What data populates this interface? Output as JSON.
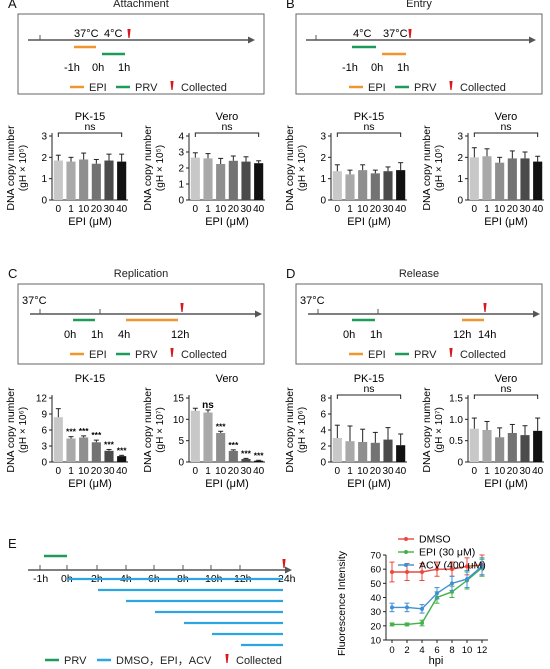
{
  "colors": {
    "epi": "#f0962e",
    "prv": "#1e9a5a",
    "collected": "#d7191c",
    "treat": "#2ea4e0",
    "dmso": "#e8493e",
    "epi30": "#43b14a",
    "acv": "#3f8fd6"
  },
  "panels": {
    "A": {
      "letter": "A",
      "title": "Attachment",
      "labels": [
        "37°C",
        "4°C",
        "-1h",
        "0h",
        "1h"
      ],
      "legend": [
        "EPI",
        "PRV",
        "Collected"
      ]
    },
    "B": {
      "letter": "B",
      "title": "Entry",
      "labels": [
        "4°C",
        "37°C",
        "-1h",
        "0h",
        "1h"
      ],
      "legend": [
        "EPI",
        "PRV",
        "Collected"
      ]
    },
    "C": {
      "letter": "C",
      "title": "Replication",
      "labels": [
        "37°C",
        "0h",
        "1h",
        "4h",
        "12h"
      ],
      "legend": [
        "EPI",
        "PRV",
        "Collected"
      ]
    },
    "D": {
      "letter": "D",
      "title": "Release",
      "labels": [
        "37°C",
        "0h",
        "1h",
        "12h",
        "14h"
      ],
      "legend": [
        "EPI",
        "PRV",
        "Collected"
      ]
    },
    "E": {
      "letter": "E",
      "labels": [
        "-1h",
        "0h",
        "2h",
        "4h",
        "6h",
        "8h",
        "10h",
        "12h",
        "24h"
      ],
      "legend": [
        "PRV",
        "DMSO，EPI，ACV",
        "Collected"
      ]
    }
  },
  "chart_data": [
    {
      "type": "bar",
      "panel": "A",
      "title": "PK-15",
      "xlabel": "EPI (μM)",
      "ylabel": "DNA copy number (gH × 10⁵)",
      "categories": [
        "0",
        "1",
        "10",
        "20",
        "30",
        "40"
      ],
      "values": [
        1.85,
        1.8,
        1.9,
        1.7,
        1.85,
        1.8
      ],
      "errors": [
        0.25,
        0.2,
        0.3,
        0.2,
        0.3,
        0.35
      ],
      "ylim": [
        0,
        3
      ],
      "yticks": [
        "0",
        "1",
        "2",
        "3"
      ],
      "sig": [
        "",
        "",
        "",
        "",
        "",
        ""
      ],
      "bracket": "ns"
    },
    {
      "type": "bar",
      "panel": "A",
      "title": "Vero",
      "xlabel": "EPI (μM)",
      "ylabel": "DNA copy number (gH × 10⁵)",
      "categories": [
        "0",
        "1",
        "10",
        "20",
        "30",
        "40"
      ],
      "values": [
        2.65,
        2.6,
        2.25,
        2.45,
        2.4,
        2.3
      ],
      "errors": [
        0.3,
        0.3,
        0.35,
        0.3,
        0.3,
        0.15
      ],
      "ylim": [
        0,
        4
      ],
      "yticks": [
        "0",
        "1",
        "2",
        "3",
        "4"
      ],
      "sig": [
        "",
        "",
        "",
        "",
        "",
        ""
      ],
      "bracket": "ns"
    },
    {
      "type": "bar",
      "panel": "B",
      "title": "PK-15",
      "xlabel": "EPI (μM)",
      "ylabel": "DNA copy number (gH × 10⁵)",
      "categories": [
        "0",
        "1",
        "10",
        "20",
        "30",
        "40"
      ],
      "values": [
        1.35,
        1.2,
        1.4,
        1.25,
        1.35,
        1.4
      ],
      "errors": [
        0.3,
        0.2,
        0.25,
        0.15,
        0.2,
        0.35
      ],
      "ylim": [
        0,
        3
      ],
      "yticks": [
        "0",
        "1",
        "2",
        "3"
      ],
      "sig": [
        "",
        "",
        "",
        "",
        "",
        ""
      ],
      "bracket": "ns"
    },
    {
      "type": "bar",
      "panel": "B",
      "title": "Vero",
      "xlabel": "EPI (μM)",
      "ylabel": "DNA copy number (gH × 10⁵)",
      "categories": [
        "0",
        "1",
        "10",
        "20",
        "30",
        "40"
      ],
      "values": [
        2.0,
        2.05,
        1.75,
        1.95,
        1.95,
        1.8
      ],
      "errors": [
        0.45,
        0.35,
        0.25,
        0.35,
        0.3,
        0.25
      ],
      "ylim": [
        0,
        3
      ],
      "yticks": [
        "0",
        "1",
        "2",
        "3"
      ],
      "sig": [
        "",
        "",
        "",
        "",
        "",
        ""
      ],
      "bracket": "ns"
    },
    {
      "type": "bar",
      "panel": "C",
      "title": "PK-15",
      "xlabel": "EPI (μM)",
      "ylabel": "DNA copy number (gH × 10⁶)",
      "categories": [
        "0",
        "1",
        "10",
        "20",
        "30",
        "40"
      ],
      "values": [
        8.4,
        4.4,
        4.6,
        3.7,
        2.1,
        1.1
      ],
      "errors": [
        1.6,
        0.35,
        0.3,
        0.4,
        0.25,
        0.15
      ],
      "ylim": [
        0,
        12
      ],
      "yticks": [
        "0",
        "3",
        "6",
        "9",
        "12"
      ],
      "sig": [
        "",
        "***",
        "***",
        "***",
        "***",
        "***"
      ],
      "bracket": ""
    },
    {
      "type": "bar",
      "panel": "C",
      "title": "Vero",
      "xlabel": "EPI (μM)",
      "ylabel": "DNA copy number (gH × 10⁷)",
      "categories": [
        "0",
        "1",
        "10",
        "20",
        "30",
        "40"
      ],
      "values": [
        12.0,
        11.6,
        6.8,
        2.6,
        0.7,
        0.3
      ],
      "errors": [
        0.6,
        0.6,
        0.4,
        0.25,
        0.15,
        0.1
      ],
      "ylim": [
        0,
        15
      ],
      "yticks": [
        "0",
        "5",
        "10",
        "15"
      ],
      "sig": [
        "",
        "ns",
        "***",
        "***",
        "***",
        "***"
      ],
      "bracket": ""
    },
    {
      "type": "bar",
      "panel": "D",
      "title": "PK-15",
      "xlabel": "EPI (μM)",
      "ylabel": "DNA copy number (gH × 10⁶)",
      "categories": [
        "0",
        "1",
        "10",
        "20",
        "30",
        "40"
      ],
      "values": [
        3.0,
        2.6,
        2.5,
        2.4,
        2.8,
        2.1
      ],
      "errors": [
        1.6,
        1.9,
        1.6,
        1.3,
        1.5,
        1.4
      ],
      "ylim": [
        0,
        8
      ],
      "yticks": [
        "0",
        "2",
        "4",
        "6",
        "8"
      ],
      "sig": [
        "",
        "",
        "",
        "",
        "",
        ""
      ],
      "bracket": "ns"
    },
    {
      "type": "bar",
      "panel": "D",
      "title": "Vero",
      "xlabel": "EPI (μM)",
      "ylabel": "DNA copy number (gH × 10⁷)",
      "categories": [
        "0",
        "1",
        "10",
        "20",
        "30",
        "40"
      ],
      "values": [
        0.78,
        0.75,
        0.58,
        0.68,
        0.63,
        0.73
      ],
      "errors": [
        0.25,
        0.2,
        0.22,
        0.2,
        0.22,
        0.3
      ],
      "ylim": [
        0,
        1.5
      ],
      "yticks": [
        "0",
        "0.5",
        "1.0",
        "1.5"
      ],
      "sig": [
        "",
        "",
        "",
        "",
        "",
        ""
      ],
      "bracket": "ns"
    },
    {
      "type": "line",
      "panel": "E",
      "xlabel": "hpi",
      "ylabel": "Fluorescence Intensity",
      "x": [
        0,
        2,
        4,
        6,
        8,
        10,
        12
      ],
      "xlim": [
        0,
        12
      ],
      "ylim": [
        10,
        70
      ],
      "yticks": [
        "10",
        "20",
        "30",
        "40",
        "50",
        "60",
        "70"
      ],
      "xticks": [
        "0",
        "2",
        "4",
        "6",
        "8",
        "10",
        "12"
      ],
      "series": [
        {
          "name": "DMSO",
          "values": [
            58,
            58,
            58,
            60,
            60,
            62,
            63
          ],
          "errors": [
            7,
            6,
            6,
            5,
            5,
            6,
            7
          ]
        },
        {
          "name": "EPI (30 μM)",
          "values": [
            21,
            21,
            22,
            40,
            44,
            52,
            61
          ],
          "errors": [
            1,
            1,
            2,
            4,
            4,
            6,
            6
          ]
        },
        {
          "name": "ACV (400 μM)",
          "values": [
            33,
            33,
            32,
            43,
            50,
            53,
            62
          ],
          "errors": [
            3,
            3,
            3,
            4,
            5,
            6,
            6
          ]
        }
      ]
    }
  ]
}
